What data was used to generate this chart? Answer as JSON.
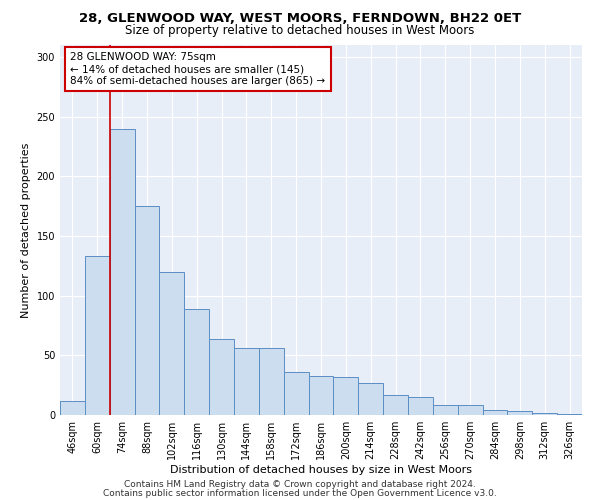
{
  "title1": "28, GLENWOOD WAY, WEST MOORS, FERNDOWN, BH22 0ET",
  "title2": "Size of property relative to detached houses in West Moors",
  "xlabel": "Distribution of detached houses by size in West Moors",
  "ylabel": "Number of detached properties",
  "categories": [
    "46sqm",
    "60sqm",
    "74sqm",
    "88sqm",
    "102sqm",
    "116sqm",
    "130sqm",
    "144sqm",
    "158sqm",
    "172sqm",
    "186sqm",
    "200sqm",
    "214sqm",
    "228sqm",
    "242sqm",
    "256sqm",
    "270sqm",
    "284sqm",
    "298sqm",
    "312sqm",
    "326sqm"
  ],
  "values": [
    12,
    133,
    240,
    175,
    120,
    89,
    64,
    56,
    56,
    36,
    33,
    32,
    27,
    17,
    15,
    8,
    8,
    4,
    3,
    2,
    1
  ],
  "bar_color": "#ccddf0",
  "bar_edge_color": "#5b8ec4",
  "vline_color": "#cc0000",
  "annotation_text": "28 GLENWOOD WAY: 75sqm\n← 14% of detached houses are smaller (145)\n84% of semi-detached houses are larger (865) →",
  "annotation_box_color": "white",
  "annotation_box_edge": "#cc0000",
  "footer1": "Contains HM Land Registry data © Crown copyright and database right 2024.",
  "footer2": "Contains public sector information licensed under the Open Government Licence v3.0.",
  "bg_color": "#e8eef8",
  "ylim": [
    0,
    310
  ],
  "title_fontsize": 9.5,
  "subtitle_fontsize": 8.5,
  "ylabel_fontsize": 8,
  "xlabel_fontsize": 8,
  "tick_fontsize": 7,
  "annot_fontsize": 7.5,
  "footer_fontsize": 6.5
}
